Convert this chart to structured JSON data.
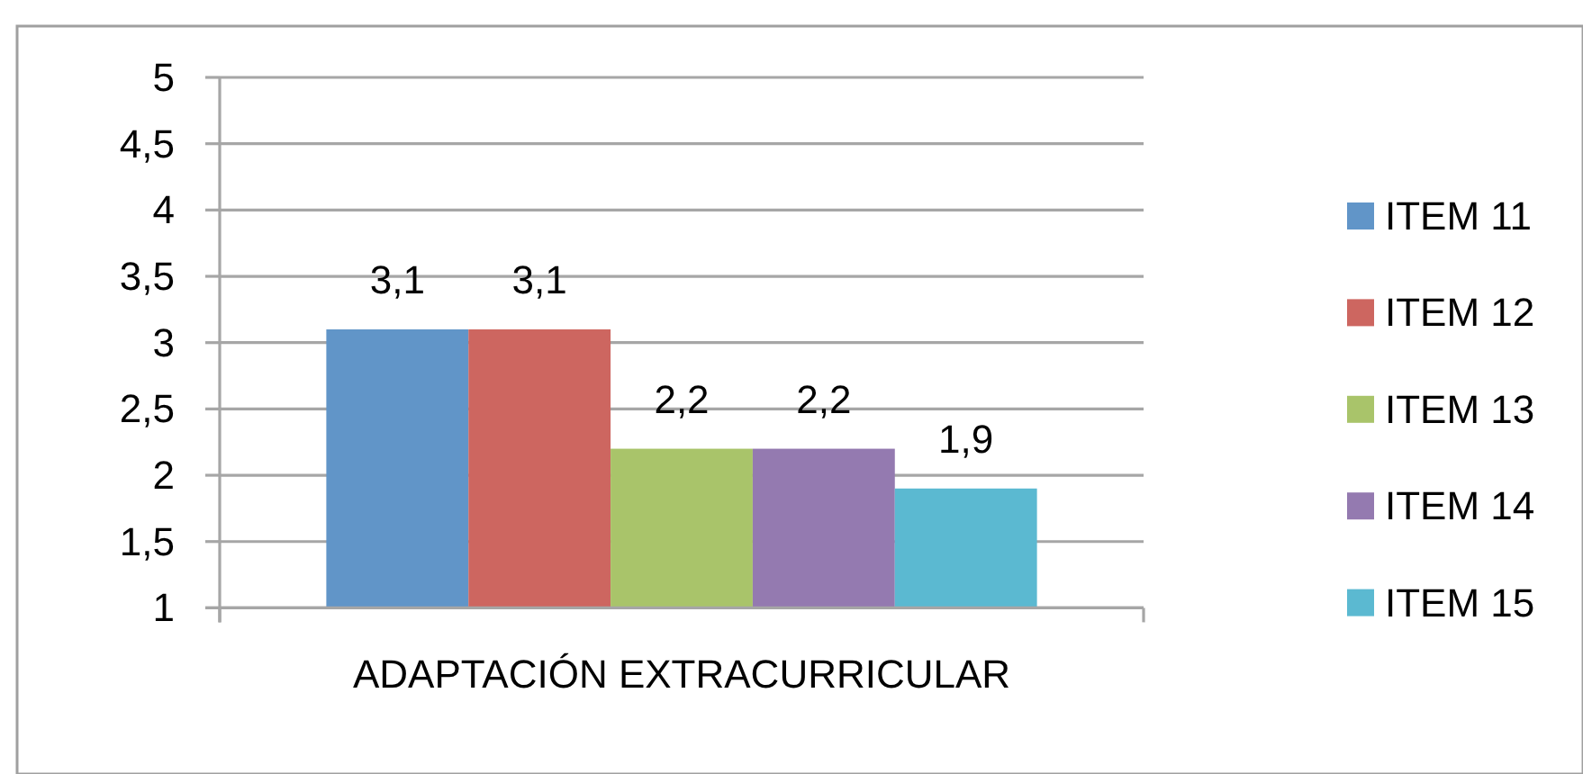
{
  "chart_data": {
    "type": "bar",
    "categories": [
      "ADAPTACIÓN EXTRACURRICULAR"
    ],
    "series": [
      {
        "name": "ITEM 11",
        "color": "#6195c8",
        "values": [
          3.1
        ],
        "value_labels": [
          "3,1"
        ]
      },
      {
        "name": "ITEM 12",
        "color": "#cd6660",
        "values": [
          3.1
        ],
        "value_labels": [
          "3,1"
        ]
      },
      {
        "name": "ITEM 13",
        "color": "#a9c46a",
        "values": [
          2.2
        ],
        "value_labels": [
          "2,2"
        ]
      },
      {
        "name": "ITEM 14",
        "color": "#947ab0",
        "values": [
          2.2
        ],
        "value_labels": [
          "2,2"
        ]
      },
      {
        "name": "ITEM 15",
        "color": "#5bb9d1",
        "values": [
          1.9
        ],
        "value_labels": [
          "1,9"
        ]
      }
    ],
    "ylim": [
      1,
      5
    ],
    "yticks": [
      1,
      {
        "value": 1.5,
        "label": "1,5"
      },
      2,
      {
        "value": 2.5,
        "label": "2,5"
      },
      3,
      {
        "value": 3.5,
        "label": "3,5"
      },
      4,
      {
        "value": 4.5,
        "label": "4,5"
      },
      5
    ],
    "grid": "y",
    "legend": "right"
  }
}
